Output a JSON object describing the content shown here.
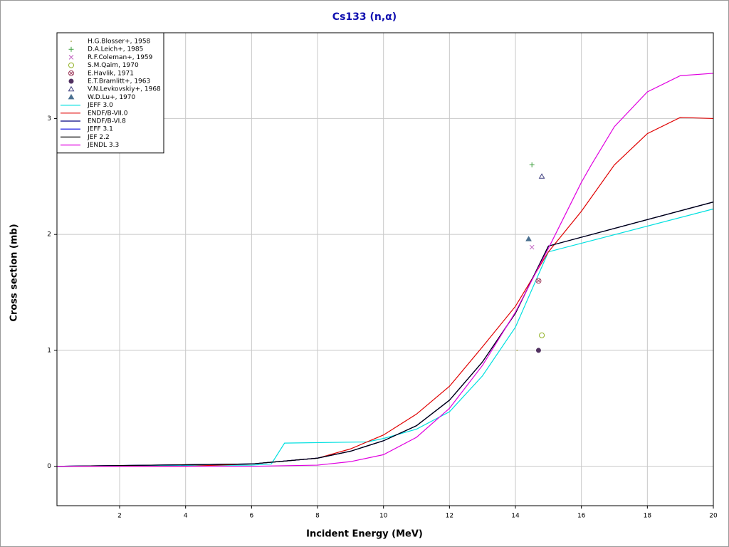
{
  "chart_data": {
    "type": "line",
    "title": "Cs133 (n,α)",
    "x_label": "Incident Energy (MeV)",
    "y_label": "Cross section (mb)",
    "xlim": [
      0.1,
      20
    ],
    "ylim": [
      -0.34,
      3.74
    ],
    "xticks": [
      2,
      4,
      6,
      8,
      10,
      12,
      14,
      16,
      18,
      20
    ],
    "yticks": [
      0,
      1,
      2,
      3
    ],
    "grid": true,
    "legend": "top-left",
    "series": [
      {
        "name": "H.G.Blosser+, 1958",
        "mode": "markers",
        "marker": "dot",
        "color": "#b0b060",
        "x": [
          14.05
        ],
        "values": [
          1.0
        ]
      },
      {
        "name": "D.A.Leich+, 1985",
        "mode": "markers",
        "marker": "plus",
        "color": "#40a040",
        "x": [
          14.5
        ],
        "values": [
          2.6
        ]
      },
      {
        "name": "R.F.Coleman+, 1959",
        "mode": "markers",
        "marker": "cross",
        "color": "#c060c0",
        "x": [
          14.5
        ],
        "values": [
          1.89
        ]
      },
      {
        "name": "S.M.Qaim, 1970",
        "mode": "markers",
        "marker": "circle",
        "color": "#90b020",
        "x": [
          14.8
        ],
        "values": [
          1.13
        ]
      },
      {
        "name": "E.Havlik, 1971",
        "mode": "markers",
        "marker": "circle-x",
        "color": "#a04060",
        "x": [
          14.7
        ],
        "values": [
          1.6
        ]
      },
      {
        "name": "E.T.Bramlitt+, 1963",
        "mode": "markers",
        "marker": "disc",
        "color": "#503060",
        "x": [
          14.7
        ],
        "values": [
          1.0
        ]
      },
      {
        "name": "V.N.Levkovskiy+, 1968",
        "mode": "markers",
        "marker": "triangle",
        "color": "#404080",
        "x": [
          14.8
        ],
        "values": [
          2.5
        ]
      },
      {
        "name": "W.D.Lu+, 1970",
        "mode": "markers",
        "marker": "filled-triangle",
        "color": "#4a7090",
        "x": [
          14.4
        ],
        "values": [
          1.96
        ]
      },
      {
        "name": "JEFF 3.0",
        "mode": "lines",
        "color": "#00e0e0",
        "x": [
          0.1,
          6,
          6.6,
          7,
          9.5,
          10,
          11,
          12,
          13,
          14,
          15,
          20
        ],
        "values": [
          0,
          0.01,
          0.02,
          0.2,
          0.21,
          0.24,
          0.32,
          0.47,
          0.78,
          1.2,
          1.85,
          2.22
        ]
      },
      {
        "name": "ENDF/B-VII.0",
        "mode": "lines",
        "color": "#e00000",
        "x": [
          0.1,
          4,
          6,
          8,
          9,
          10,
          11,
          12,
          13,
          14,
          15,
          16,
          17,
          18,
          19,
          20
        ],
        "values": [
          0,
          0,
          0.02,
          0.07,
          0.15,
          0.27,
          0.45,
          0.69,
          1.03,
          1.38,
          1.85,
          2.2,
          2.6,
          2.87,
          3.01,
          3.0
        ]
      },
      {
        "name": "ENDF/B-VI.8",
        "mode": "lines",
        "color": "#000080",
        "x": [
          0.1,
          6,
          8,
          9,
          10,
          11,
          12,
          13,
          14,
          15,
          20
        ],
        "values": [
          0,
          0.02,
          0.07,
          0.13,
          0.22,
          0.35,
          0.57,
          0.9,
          1.32,
          1.9,
          2.28
        ]
      },
      {
        "name": "JEFF 3.1",
        "mode": "lines",
        "color": "#0000e0",
        "x": [
          0.1,
          6,
          8,
          9,
          10,
          11,
          12,
          13,
          14,
          15,
          20
        ],
        "values": [
          0,
          0.02,
          0.07,
          0.13,
          0.22,
          0.35,
          0.57,
          0.9,
          1.32,
          1.9,
          2.28
        ]
      },
      {
        "name": "JEF 2.2",
        "mode": "lines",
        "color": "#000000",
        "x": [
          0.1,
          6,
          8,
          9,
          10,
          11,
          12,
          13,
          14,
          15,
          20
        ],
        "values": [
          0,
          0.02,
          0.07,
          0.13,
          0.22,
          0.35,
          0.57,
          0.9,
          1.32,
          1.9,
          2.28
        ]
      },
      {
        "name": "JENDL 3.3",
        "mode": "lines",
        "color": "#e000e0",
        "x": [
          0.1,
          6,
          8,
          9,
          10,
          11,
          12,
          13,
          14,
          15,
          16,
          16.3,
          17,
          18,
          19,
          20
        ],
        "values": [
          0,
          0,
          0.01,
          0.04,
          0.1,
          0.25,
          0.5,
          0.87,
          1.33,
          1.88,
          2.45,
          2.6,
          2.93,
          3.23,
          3.37,
          3.39
        ]
      }
    ]
  }
}
